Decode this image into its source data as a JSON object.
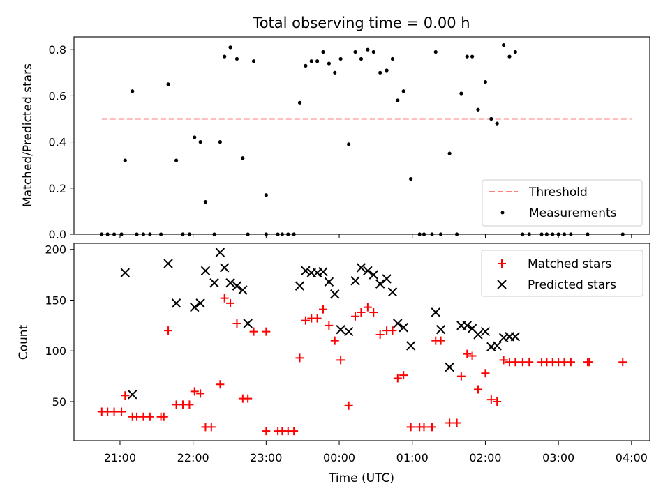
{
  "figure": {
    "title": "Total observing time = 0.00 h"
  },
  "chart_data": [
    {
      "type": "scatter",
      "title": "Total observing time = 0.00 h",
      "xlabel": "",
      "ylabel": "Matched/Predicted stars",
      "xlim": [
        -0.63,
        7.25
      ],
      "ylim": [
        0,
        0.855
      ],
      "yticks": [
        "0.0",
        "0.2",
        "0.4",
        "0.6",
        "0.8"
      ],
      "ytick_values": [
        0,
        0.2,
        0.4,
        0.6,
        0.8
      ],
      "grid": false,
      "legend_position": "lower-right",
      "threshold": {
        "name": "Threshold",
        "value": 0.5,
        "x_start": -0.25,
        "x_end": 7.0,
        "color": "#ff7f7f"
      },
      "series": [
        {
          "name": "Measurements",
          "color": "#000000",
          "points": [
            [
              -0.25,
              0
            ],
            [
              -0.17,
              0
            ],
            [
              -0.08,
              0
            ],
            [
              0.02,
              0
            ],
            [
              0.07,
              0.32
            ],
            [
              0.17,
              0.62
            ],
            [
              0.23,
              0
            ],
            [
              0.32,
              0
            ],
            [
              0.41,
              0
            ],
            [
              0.56,
              0
            ],
            [
              0.66,
              0.65
            ],
            [
              0.77,
              0.32
            ],
            [
              0.86,
              0
            ],
            [
              0.95,
              0
            ],
            [
              1.02,
              0.42
            ],
            [
              1.1,
              0.4
            ],
            [
              1.17,
              0.14
            ],
            [
              1.29,
              0
            ],
            [
              1.37,
              0.4
            ],
            [
              1.43,
              0.77
            ],
            [
              1.51,
              0.81
            ],
            [
              1.6,
              0.76
            ],
            [
              1.68,
              0.33
            ],
            [
              1.75,
              0
            ],
            [
              1.83,
              0.75
            ],
            [
              2.0,
              0
            ],
            [
              2.0,
              0.17
            ],
            [
              2.16,
              0
            ],
            [
              2.22,
              0
            ],
            [
              2.3,
              0
            ],
            [
              2.38,
              0
            ],
            [
              2.46,
              0.57
            ],
            [
              2.54,
              0.73
            ],
            [
              2.62,
              0.75
            ],
            [
              2.7,
              0.75
            ],
            [
              2.78,
              0.79
            ],
            [
              2.86,
              0.74
            ],
            [
              2.94,
              0.7
            ],
            [
              3.02,
              0.76
            ],
            [
              3.13,
              0.39
            ],
            [
              3.22,
              0.79
            ],
            [
              3.3,
              0.76
            ],
            [
              3.39,
              0.8
            ],
            [
              3.47,
              0.79
            ],
            [
              3.56,
              0.7
            ],
            [
              3.65,
              0.71
            ],
            [
              3.73,
              0.76
            ],
            [
              3.8,
              0.58
            ],
            [
              3.88,
              0.62
            ],
            [
              3.98,
              0.24
            ],
            [
              4.1,
              0
            ],
            [
              4.16,
              0
            ],
            [
              4.27,
              0
            ],
            [
              4.32,
              0.79
            ],
            [
              4.39,
              0
            ],
            [
              4.51,
              0.35
            ],
            [
              4.61,
              0
            ],
            [
              4.67,
              0.61
            ],
            [
              4.75,
              0.77
            ],
            [
              4.82,
              0.77
            ],
            [
              4.9,
              0.54
            ],
            [
              5.0,
              0.66
            ],
            [
              5.08,
              0.5
            ],
            [
              5.16,
              0.48
            ],
            [
              5.25,
              0.82
            ],
            [
              5.33,
              0.77
            ],
            [
              5.41,
              0.79
            ],
            [
              5.51,
              0
            ],
            [
              5.6,
              0
            ],
            [
              5.77,
              0
            ],
            [
              5.84,
              0
            ],
            [
              5.92,
              0
            ],
            [
              6.0,
              0
            ],
            [
              6.08,
              0
            ],
            [
              6.17,
              0
            ],
            [
              6.4,
              0
            ],
            [
              6.88,
              0
            ]
          ]
        }
      ]
    },
    {
      "type": "scatter",
      "xlabel": "Time (UTC)",
      "ylabel": "Count",
      "xlim": [
        -0.63,
        7.25
      ],
      "ylim": [
        11.5,
        206
      ],
      "yticks": [
        "50",
        "100",
        "150",
        "200"
      ],
      "ytick_values": [
        50,
        100,
        150,
        200
      ],
      "xticks": [
        "21:00",
        "22:00",
        "23:00",
        "00:00",
        "01:00",
        "02:00",
        "03:00",
        "04:00"
      ],
      "xtick_values": [
        0,
        1,
        2,
        3,
        4,
        5,
        6,
        7
      ],
      "grid": false,
      "legend_position": "upper-right",
      "series": [
        {
          "name": "Matched stars",
          "marker": "plus",
          "color": "#ff0000",
          "points": [
            [
              -0.25,
              40
            ],
            [
              -0.17,
              40
            ],
            [
              -0.08,
              40
            ],
            [
              0.02,
              40
            ],
            [
              0.07,
              56
            ],
            [
              0.17,
              35
            ],
            [
              0.23,
              35
            ],
            [
              0.32,
              35
            ],
            [
              0.41,
              35
            ],
            [
              0.56,
              35
            ],
            [
              0.6,
              35
            ],
            [
              0.66,
              120
            ],
            [
              0.77,
              47
            ],
            [
              0.86,
              47
            ],
            [
              0.95,
              47
            ],
            [
              1.02,
              60
            ],
            [
              1.1,
              58
            ],
            [
              1.17,
              25
            ],
            [
              1.25,
              25
            ],
            [
              1.37,
              67
            ],
            [
              1.43,
              152
            ],
            [
              1.51,
              147
            ],
            [
              1.6,
              127
            ],
            [
              1.68,
              53
            ],
            [
              1.75,
              53
            ],
            [
              1.83,
              119
            ],
            [
              2.0,
              21
            ],
            [
              2.0,
              119
            ],
            [
              2.16,
              21
            ],
            [
              2.22,
              21
            ],
            [
              2.3,
              21
            ],
            [
              2.38,
              21
            ],
            [
              2.46,
              93
            ],
            [
              2.54,
              130
            ],
            [
              2.62,
              132
            ],
            [
              2.7,
              132
            ],
            [
              2.78,
              141
            ],
            [
              2.86,
              125
            ],
            [
              2.94,
              110
            ],
            [
              3.02,
              91
            ],
            [
              3.13,
              46
            ],
            [
              3.22,
              134
            ],
            [
              3.3,
              138
            ],
            [
              3.39,
              143
            ],
            [
              3.47,
              138
            ],
            [
              3.56,
              116
            ],
            [
              3.65,
              120
            ],
            [
              3.73,
              120
            ],
            [
              3.8,
              73
            ],
            [
              3.88,
              76
            ],
            [
              3.98,
              25
            ],
            [
              4.1,
              25
            ],
            [
              4.16,
              25
            ],
            [
              4.27,
              25
            ],
            [
              4.32,
              110
            ],
            [
              4.39,
              110
            ],
            [
              4.51,
              29
            ],
            [
              4.61,
              29
            ],
            [
              4.67,
              75
            ],
            [
              4.75,
              97
            ],
            [
              4.82,
              95
            ],
            [
              4.9,
              62
            ],
            [
              5.0,
              78
            ],
            [
              5.08,
              52
            ],
            [
              5.16,
              50
            ],
            [
              5.25,
              91
            ],
            [
              5.33,
              89
            ],
            [
              5.41,
              89
            ],
            [
              5.51,
              89
            ],
            [
              5.6,
              89
            ],
            [
              5.77,
              89
            ],
            [
              5.84,
              89
            ],
            [
              5.92,
              89
            ],
            [
              6.0,
              89
            ],
            [
              6.08,
              89
            ],
            [
              6.17,
              89
            ],
            [
              6.4,
              89
            ],
            [
              6.42,
              89
            ],
            [
              6.88,
              89
            ]
          ]
        },
        {
          "name": "Predicted stars",
          "marker": "x",
          "color": "#000000",
          "points": [
            [
              0.07,
              177
            ],
            [
              0.17,
              57
            ],
            [
              0.66,
              186
            ],
            [
              0.77,
              147
            ],
            [
              1.02,
              143
            ],
            [
              1.1,
              147
            ],
            [
              1.17,
              179
            ],
            [
              1.29,
              167
            ],
            [
              1.37,
              197
            ],
            [
              1.43,
              182
            ],
            [
              1.51,
              167
            ],
            [
              1.6,
              164
            ],
            [
              1.68,
              160
            ],
            [
              1.75,
              127
            ],
            [
              2.46,
              164
            ],
            [
              2.54,
              179
            ],
            [
              2.62,
              177
            ],
            [
              2.7,
              177
            ],
            [
              2.78,
              178
            ],
            [
              2.86,
              168
            ],
            [
              2.94,
              156
            ],
            [
              3.02,
              121
            ],
            [
              3.13,
              119
            ],
            [
              3.22,
              169
            ],
            [
              3.3,
              182
            ],
            [
              3.39,
              179
            ],
            [
              3.47,
              175
            ],
            [
              3.56,
              166
            ],
            [
              3.65,
              171
            ],
            [
              3.73,
              158
            ],
            [
              3.8,
              127
            ],
            [
              3.88,
              123
            ],
            [
              3.98,
              105
            ],
            [
              4.32,
              138
            ],
            [
              4.39,
              121
            ],
            [
              4.51,
              84
            ],
            [
              4.67,
              125
            ],
            [
              4.75,
              125
            ],
            [
              4.82,
              122
            ],
            [
              4.9,
              116
            ],
            [
              5.0,
              119
            ],
            [
              5.08,
              104
            ],
            [
              5.16,
              105
            ],
            [
              5.25,
              113
            ],
            [
              5.33,
              114
            ],
            [
              5.41,
              114
            ]
          ]
        }
      ]
    }
  ]
}
